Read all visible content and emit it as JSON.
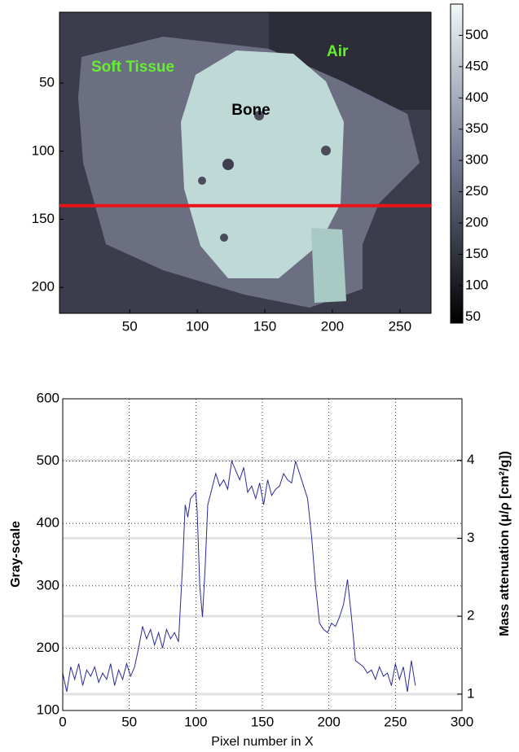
{
  "chart_data": [
    {
      "type": "image",
      "annotations": [
        "Soft Tissue",
        "Bone",
        "Air"
      ],
      "xlim": [
        -2,
        273
      ],
      "xticks": [
        50,
        100,
        150,
        200,
        250
      ],
      "ylim": [
        -2,
        219
      ],
      "yticks": [
        50,
        100,
        150,
        200
      ],
      "y_inverted": true,
      "hline": 140,
      "hline_color": "#e8141a",
      "clim": [
        40,
        550
      ],
      "cticks": [
        50,
        100,
        150,
        200,
        250,
        300,
        350,
        400,
        450,
        500
      ]
    },
    {
      "type": "line",
      "xlabel": "Pixel number in X",
      "ylabel": "Gray-scale",
      "y2label": "Mass attenuation (μ/ρ [cm²/g])",
      "x": [
        0,
        3,
        6,
        9,
        12,
        15,
        18,
        21,
        24,
        27,
        30,
        33,
        36,
        39,
        42,
        45,
        48,
        51,
        54,
        57,
        60,
        63,
        66,
        69,
        72,
        75,
        78,
        81,
        84,
        87,
        90,
        92,
        94,
        96,
        98,
        100,
        101,
        103,
        105,
        107,
        109,
        112,
        115,
        118,
        121,
        124,
        127,
        130,
        133,
        136,
        139,
        142,
        145,
        148,
        151,
        154,
        157,
        160,
        163,
        166,
        169,
        172,
        175,
        178,
        181,
        184,
        187,
        190,
        193,
        196,
        199,
        202,
        205,
        208,
        211,
        214,
        217,
        220,
        223,
        226,
        229,
        232,
        235,
        238,
        241,
        244,
        247,
        250,
        253,
        256,
        259,
        262,
        265
      ],
      "values": [
        160,
        130,
        170,
        150,
        175,
        140,
        165,
        155,
        170,
        145,
        160,
        150,
        175,
        140,
        165,
        150,
        175,
        155,
        170,
        200,
        235,
        215,
        230,
        205,
        225,
        200,
        230,
        215,
        225,
        210,
        330,
        430,
        410,
        440,
        445,
        450,
        420,
        300,
        250,
        330,
        430,
        455,
        480,
        460,
        470,
        455,
        500,
        485,
        470,
        490,
        450,
        460,
        440,
        465,
        430,
        470,
        445,
        455,
        460,
        480,
        470,
        465,
        500,
        480,
        460,
        440,
        380,
        300,
        240,
        230,
        225,
        240,
        235,
        250,
        270,
        310,
        250,
        180,
        175,
        170,
        160,
        165,
        150,
        170,
        155,
        160,
        140,
        175,
        150,
        170,
        130,
        180,
        140
      ],
      "color": "#2b2b9c",
      "xlim": [
        0,
        300
      ],
      "xticks": [
        0,
        50,
        100,
        150,
        200,
        250,
        300
      ],
      "ylim": [
        100,
        600
      ],
      "yticks": [
        100,
        200,
        300,
        400,
        500,
        600
      ],
      "y2lim": [
        0.79,
        4.79
      ],
      "y2ticks": [
        1,
        2,
        3,
        4
      ],
      "grid": true
    }
  ]
}
